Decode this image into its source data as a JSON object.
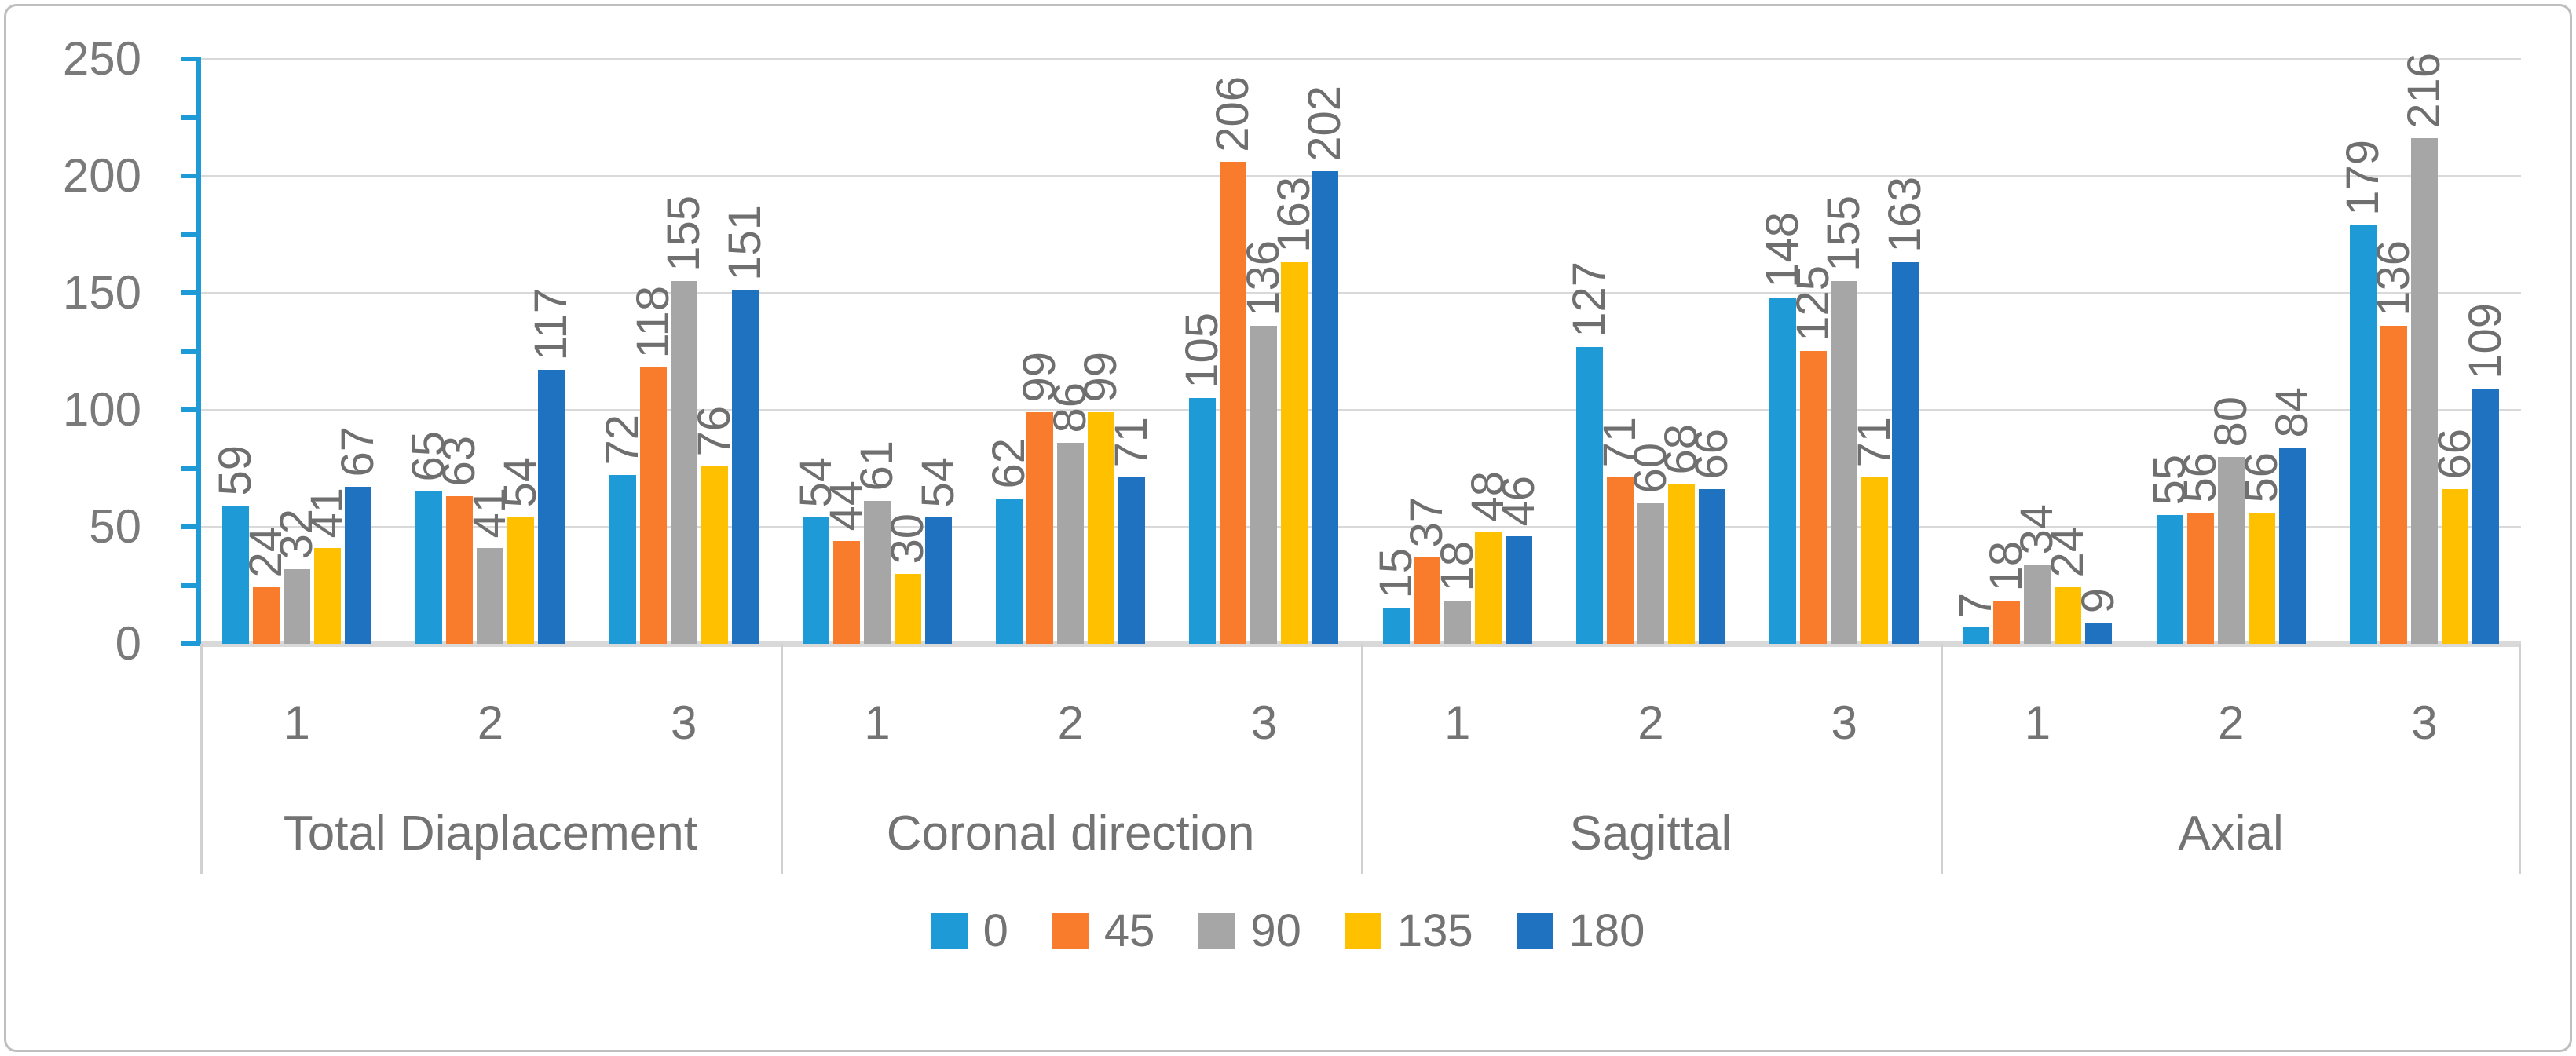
{
  "chart_data": {
    "type": "bar",
    "title": "",
    "groups": [
      "Total Diaplacement",
      "Coronal direction",
      "Sagittal",
      "Axial"
    ],
    "subcategories": [
      "1",
      "2",
      "3"
    ],
    "series": [
      {
        "name": "0",
        "color": "#1E9AD6",
        "values": [
          [
            59,
            65,
            72
          ],
          [
            54,
            62,
            105
          ],
          [
            15,
            127,
            148
          ],
          [
            7,
            55,
            179
          ]
        ]
      },
      {
        "name": "45",
        "color": "#F87C2B",
        "values": [
          [
            24,
            63,
            118
          ],
          [
            44,
            99,
            206
          ],
          [
            37,
            71,
            125
          ],
          [
            18,
            56,
            136
          ]
        ]
      },
      {
        "name": "90",
        "color": "#A6A6A6",
        "values": [
          [
            32,
            41,
            155
          ],
          [
            61,
            86,
            136
          ],
          [
            18,
            60,
            155
          ],
          [
            34,
            80,
            216
          ]
        ]
      },
      {
        "name": "135",
        "color": "#FFC000",
        "values": [
          [
            41,
            54,
            76
          ],
          [
            30,
            99,
            163
          ],
          [
            48,
            68,
            71
          ],
          [
            24,
            56,
            66
          ]
        ]
      },
      {
        "name": "180",
        "color": "#1F72C0",
        "values": [
          [
            67,
            117,
            151
          ],
          [
            54,
            71,
            202
          ],
          [
            46,
            66,
            163
          ],
          [
            9,
            84,
            109
          ]
        ]
      }
    ],
    "ylim": [
      0,
      250
    ],
    "yticks": [
      0,
      50,
      100,
      150,
      200,
      250
    ],
    "minor_tick_step": 25,
    "grid": true,
    "value_labels": true,
    "value_label_rotation": "vertical",
    "legend_position": "bottom",
    "xlabel": "",
    "ylabel": ""
  },
  "colors": {
    "gridline": "#D9D9D9",
    "value_axis": "#1E9AD6",
    "divider": "#D2D0D0",
    "text": "#737373",
    "frame_border": "#BFBFBF",
    "background": "#FFFFFF"
  }
}
